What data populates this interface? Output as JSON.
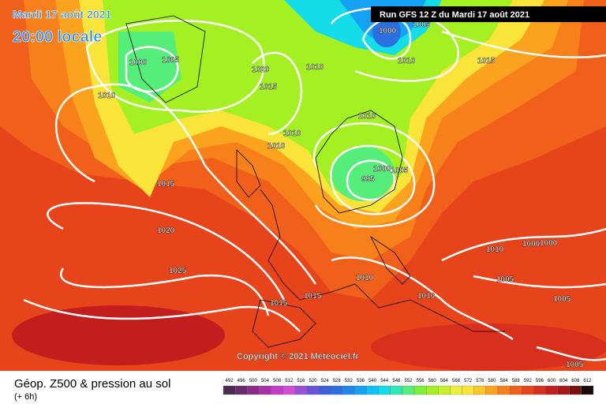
{
  "header": {
    "date": "Mardi 17 août 2021",
    "time": "20:00 locale",
    "run": "Run GFS 12 Z du Mardi 17 août 2021"
  },
  "copyright": "Copyright © 2021 Meteociel.fr",
  "footer": {
    "title": "Géop. Z500 & pression au sol",
    "lead": "(+ 6h)"
  },
  "map": {
    "isobar_labels": [
      "1000",
      "1005",
      "1010",
      "1020",
      "1015",
      "1010",
      "1000",
      "1005",
      "1010",
      "1015",
      "1010",
      "1010",
      "1010",
      "1000",
      "1005",
      "995",
      "1015",
      "1020",
      "1025",
      "1000",
      "1000",
      "1010",
      "1005",
      "1010",
      "1010",
      "1015",
      "1015",
      "1005",
      "1005"
    ]
  },
  "legend": {
    "labels": [
      492,
      496,
      500,
      504,
      508,
      512,
      516,
      520,
      524,
      528,
      532,
      536,
      540,
      544,
      548,
      552,
      556,
      560,
      564,
      568,
      572,
      576,
      580,
      584,
      588,
      592,
      596,
      600,
      604,
      608,
      612
    ],
    "colors": [
      "#4b2b52",
      "#6b2a6b",
      "#8a2a8a",
      "#a632a6",
      "#c33cc3",
      "#d24fd2",
      "#9a4fd6",
      "#6a52d9",
      "#3f5ed9",
      "#2a70e0",
      "#1f86ec",
      "#15a2f5",
      "#0dc2fa",
      "#14dce8",
      "#2fe8b8",
      "#56ee7a",
      "#7eef3a",
      "#a5f022",
      "#c8ef2a",
      "#e9ef3a",
      "#fbe43a",
      "#fcc52a",
      "#fba21f",
      "#f7801a",
      "#f0601a",
      "#e8441c",
      "#d8301c",
      "#c21e1e",
      "#a81818",
      "#7a1010",
      "#1a0a0a"
    ]
  }
}
